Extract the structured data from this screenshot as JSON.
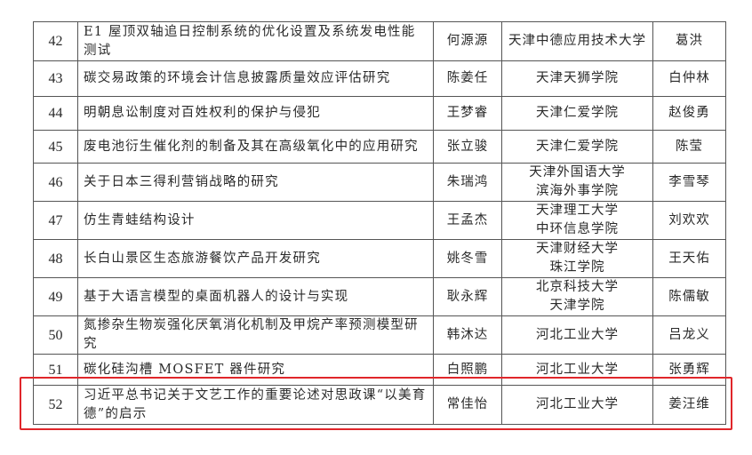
{
  "highlight_color": "#e0262a",
  "rows": [
    {
      "no": "42",
      "title": "E1 屋顶双轴追日控制系统的优化设置及系统发电性能测试",
      "author": "何源源",
      "school": [
        "天津中德应用技术大学"
      ],
      "advisor": "葛洪"
    },
    {
      "no": "43",
      "title": "碳交易政策的环境会计信息披露质量效应评估研究",
      "author": "陈姜任",
      "school": [
        "天津天狮学院"
      ],
      "advisor": "白仲林"
    },
    {
      "no": "44",
      "title": "明朝息讼制度对百姓权利的保护与侵犯",
      "author": "王梦睿",
      "school": [
        "天津仁爱学院"
      ],
      "advisor": "赵俊勇"
    },
    {
      "no": "45",
      "title": "废电池衍生催化剂的制备及其在高级氧化中的应用研究",
      "author": "张立骏",
      "school": [
        "天津仁爱学院"
      ],
      "advisor": "陈莹"
    },
    {
      "no": "46",
      "title": "关于日本三得利营销战略的研究",
      "author": "朱瑞鸿",
      "school": [
        "天津外国语大学",
        "滨海外事学院"
      ],
      "advisor": "李雪琴"
    },
    {
      "no": "47",
      "title": "仿生青蛙结构设计",
      "author": "王孟杰",
      "school": [
        "天津理工大学",
        "中环信息学院"
      ],
      "advisor": "刘欢欢"
    },
    {
      "no": "48",
      "title": "长白山景区生态旅游餐饮产品开发研究",
      "author": "姚冬雪",
      "school": [
        "天津财经大学",
        "珠江学院"
      ],
      "advisor": "王天佑"
    },
    {
      "no": "49",
      "title": "基于大语言模型的桌面机器人的设计与实现",
      "author": "耿永辉",
      "school": [
        "北京科技大学",
        "天津学院"
      ],
      "advisor": "陈儒敏"
    },
    {
      "no": "50",
      "title": "氮掺杂生物炭强化厌氧消化机制及甲烷产率预测模型研究",
      "author": "韩沐达",
      "school": [
        "河北工业大学"
      ],
      "advisor": "吕龙义"
    },
    {
      "no": "51",
      "title": "碳化硅沟槽 MOSFET 器件研究",
      "author": "白照鹏",
      "school": [
        "河北工业大学"
      ],
      "advisor": "张勇辉"
    },
    {
      "no": "52",
      "title": "习近平总书记关于文艺工作的重要论述对思政课“以美育德”的启示",
      "author": "常佳怡",
      "school": [
        "河北工业大学"
      ],
      "advisor": "姜汪维"
    }
  ]
}
